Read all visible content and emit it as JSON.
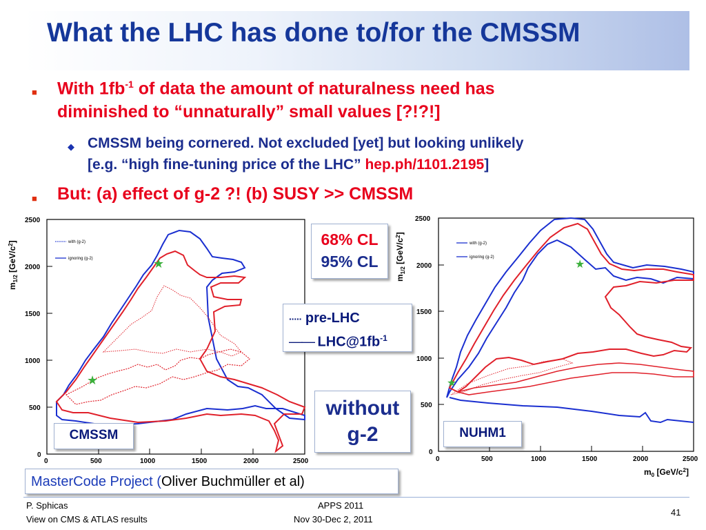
{
  "slide": {
    "title": "What the LHC has done to/for the CMSSM",
    "bullets": {
      "b1_line1_pre": "With 1fb",
      "b1_line1_sup": "-1",
      "b1_line1_post": " of data the amount of naturalness need has",
      "b1_line2": "diminished to “unnaturally” small values [?!?!]",
      "sub_line1": "CMSSM being cornered.  Not excluded [yet] but looking unlikely",
      "sub_line2_pre": "[e.g. “high fine-tuning price of the LHC” ",
      "sub_line2_ref": "hep.ph/1101.2195",
      "sub_line2_post": "]",
      "b2": "But: (a) effect of g-2 ?! (b) SUSY >> CMSSM"
    },
    "bullet_icon": "square-bullet-icon",
    "sub_bullet_icon": "diamond-bullet-icon"
  },
  "plots": {
    "left": {
      "y_ticks": [
        "2500",
        "2000",
        "1500",
        "1000",
        "500",
        "0"
      ],
      "x_ticks": [
        "0",
        "500",
        "1000",
        "1500",
        "2000",
        "2500"
      ],
      "y_label": "m",
      "y_label_sub": "1/2",
      "y_label_unit": " [GeV/c",
      "y_label_unit_sup": "2",
      "y_label_unit_end": "]",
      "legend_with": "with (g-2)",
      "legend_ignoring": "ignoring (g-2)",
      "name": "CMSSM"
    },
    "right": {
      "y_ticks": [
        "2500",
        "2000",
        "1500",
        "1000",
        "500",
        "0"
      ],
      "x_ticks": [
        "0",
        "500",
        "1000",
        "1500",
        "2000",
        "2500"
      ],
      "y_label": "m",
      "y_label_sub": "1/2",
      "y_label_unit": " [GeV/c",
      "y_label_unit_sup": "2",
      "y_label_unit_end": "]",
      "x_label": "m",
      "x_label_sub": "0",
      "x_label_unit": " [GeV/c",
      "x_label_unit_sup": "2",
      "x_label_unit_end": "]",
      "legend_with": "with (g-2)",
      "legend_ignoring": "ignoring (g-2)",
      "name": "NUHM1"
    }
  },
  "legend": {
    "cl68": "68% CL",
    "cl95": "95% CL",
    "pre_lhc_marker": "·····",
    "pre_lhc": " pre-LHC",
    "lhc_marker": "——",
    "lhc_pre": " LHC@1fb",
    "lhc_sup": "-1"
  },
  "without": {
    "line1": "without",
    "line2": "g-2"
  },
  "mastercode": {
    "blue": "MasterCode Project (",
    "black": "Oliver Buchmüller et al)"
  },
  "footer": {
    "author": "P. Sphicas",
    "subtitle": "View on CMS & ATLAS results",
    "conf": "APPS 2011",
    "dates": "Nov 30-Dec 2, 2011",
    "page": "41"
  },
  "colors": {
    "title": "#15379a",
    "red": "#e8001c",
    "blue": "#1b2d8e",
    "cl68": "#e8001c",
    "cl95": "#1b2d8e"
  }
}
